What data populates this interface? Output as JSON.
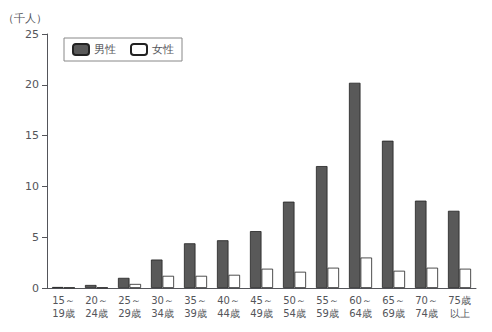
{
  "chart_data": {
    "type": "bar",
    "ylabel": "（千人）",
    "categories": [
      "15～\n19歳",
      "20～\n24歳",
      "25～\n29歳",
      "30～\n34歳",
      "35～\n39歳",
      "40～\n44歳",
      "45～\n49歳",
      "50～\n54歳",
      "55～\n59歳",
      "60～\n64歳",
      "65～\n69歳",
      "70～\n74歳",
      "75歳\n以上"
    ],
    "series": [
      {
        "name": "男性",
        "color": "#595959",
        "values": [
          0.1,
          0.3,
          1.0,
          2.8,
          4.4,
          4.7,
          5.6,
          8.5,
          12.0,
          20.2,
          14.5,
          8.6,
          7.6
        ]
      },
      {
        "name": "女性",
        "color": "#ffffff",
        "values": [
          0.05,
          0.05,
          0.4,
          1.2,
          1.2,
          1.3,
          1.9,
          1.6,
          2.0,
          3.0,
          1.7,
          2.0,
          1.9
        ]
      }
    ],
    "ylim": [
      0,
      25
    ],
    "yticks": [
      0,
      5,
      10,
      15,
      20,
      25
    ],
    "grid": false,
    "legend": "upper left"
  }
}
